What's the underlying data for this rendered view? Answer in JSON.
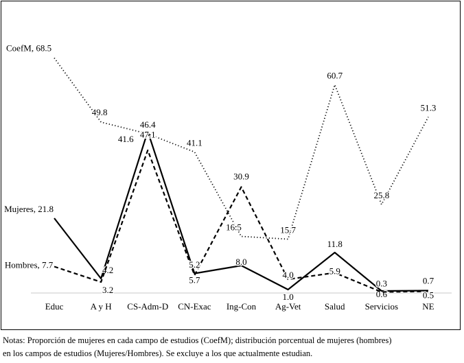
{
  "chart_data": {
    "type": "line",
    "categories": [
      "Educ",
      "A y H",
      "CS-Adm-D",
      "CN-Exac",
      "Ing-Con",
      "Ag-Vet",
      "Salud",
      "Servicios",
      "NE"
    ],
    "series": [
      {
        "name": "CoefM",
        "style": "dotted",
        "color": "#000000",
        "values": [
          68.5,
          49.8,
          46.4,
          41.1,
          16.5,
          15.7,
          60.7,
          25.8,
          51.3
        ],
        "labels": [
          "CoefM, 68.5",
          "49.8",
          "46.4",
          "41.1",
          "16.5",
          "15.7",
          "60.7",
          "25.8",
          "51.3"
        ]
      },
      {
        "name": "Mujeres",
        "style": "solid",
        "color": "#000000",
        "values": [
          21.8,
          4.2,
          47.1,
          5.7,
          8.0,
          1.0,
          11.8,
          0.6,
          0.7
        ],
        "labels": [
          "Mujeres, 21.8",
          "4.2",
          "47.1",
          "5.7",
          "8.0",
          "1.0",
          "11.8",
          "0.6",
          "0.7"
        ]
      },
      {
        "name": "Hombres",
        "style": "dashed",
        "color": "#000000",
        "values": [
          7.7,
          3.2,
          41.6,
          5.2,
          30.9,
          4.0,
          5.9,
          0.3,
          0.5
        ],
        "labels": [
          "Hombres, 7.7",
          "3.2",
          "41.6",
          "5.2",
          "30.9",
          "4.0",
          "5.9",
          "0.3",
          "0.5"
        ]
      }
    ],
    "ylim": [
      0,
      80
    ],
    "grid": false,
    "legend": "none"
  },
  "notes": {
    "line1": "Notas: Proporción de mujeres en cada campo de estudios (CoefM); distribución porcentual de mujeres (hombres)",
    "line2": "en los campos de estudios (Mujeres/Hombres). Se excluye a los que actualmente estudian."
  }
}
